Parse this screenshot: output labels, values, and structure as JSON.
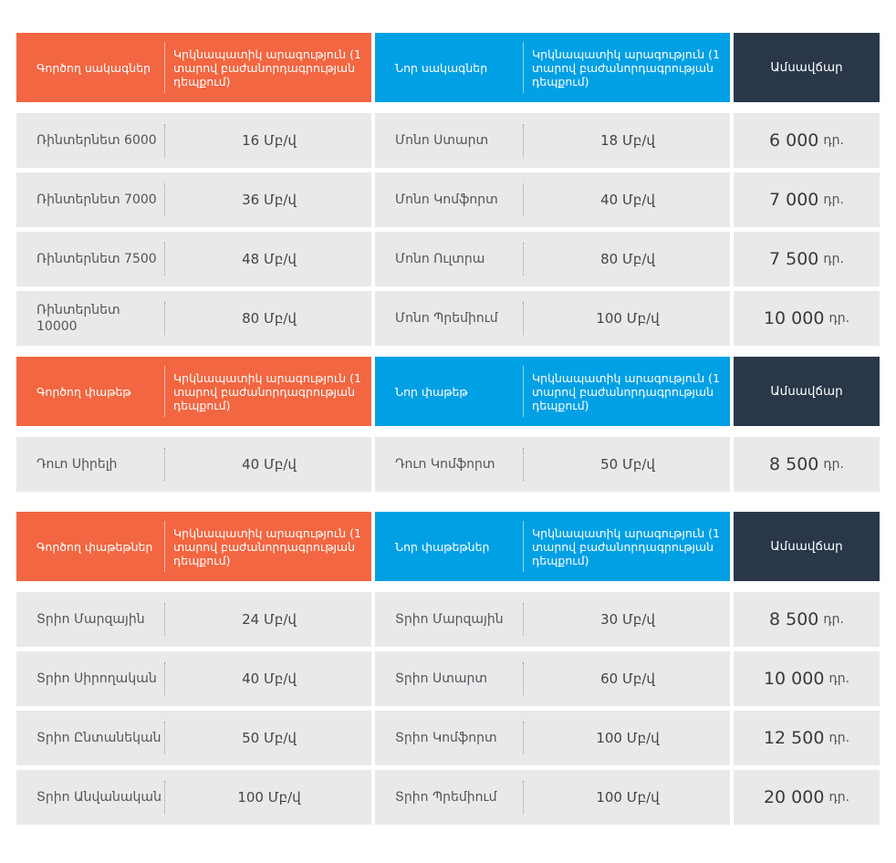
{
  "sections": [
    {
      "header": {
        "existing_label": "Գործող սակագներ",
        "existing_desc": "Կրկնապատիկ արագություն (1 տարով բաժանորդագրության դեպքում)",
        "new_label": "Նոր սակագներ",
        "new_desc": "Կրկնապատիկ արագություն (1 տարով բաժանորդագրության դեպքում)",
        "price_label": "Ամսավճար"
      },
      "rows": [
        {
          "old_name": "Ռինտերնետ 6000",
          "old_speed": "16 Մբ/վ",
          "new_name": "Մոնո Ստարտ",
          "new_speed": "18 Մբ/վ",
          "price": "6 000",
          "unit": "դր."
        },
        {
          "old_name": "Ռինտերնետ 7000",
          "old_speed": "36 Մբ/վ",
          "new_name": "Մոնո Կոմֆորտ",
          "new_speed": "40 Մբ/վ",
          "price": "7 000",
          "unit": "դր."
        },
        {
          "old_name": "Ռինտերնետ 7500",
          "old_speed": "48 Մբ/վ",
          "new_name": "Մոնո Ուլտրա",
          "new_speed": "80 Մբ/վ",
          "price": "7 500",
          "unit": "դր."
        },
        {
          "old_name": "Ռինտերնետ 10000",
          "old_speed": "80 Մբ/վ",
          "new_name": "Մոնո Պրեմիում",
          "new_speed": "100 Մբ/վ",
          "price": "10 000",
          "unit": "դր."
        }
      ]
    },
    {
      "header": {
        "existing_label": "Գործող փաթեթ",
        "existing_desc": "Կրկնապատիկ արագություն (1 տարով բաժանորդագրության դեպքում)",
        "new_label": "Նոր փաթեթ",
        "new_desc": "Կրկնապատիկ արագություն (1 տարով բաժանորդագրության դեպքում)",
        "price_label": "Ամսավճար"
      },
      "rows": [
        {
          "old_name": "Դուո Սիրելի",
          "old_speed": "40 Մբ/վ",
          "new_name": "Դուո Կոմֆորտ",
          "new_speed": "50 Մբ/վ",
          "price": "8 500",
          "unit": "դր."
        }
      ]
    },
    {
      "header": {
        "existing_label": "Գործող փաթեթներ",
        "existing_desc": "Կրկնապատիկ արագություն (1 տարով բաժանորդագրության դեպքում)",
        "new_label": "Նոր փաթեթներ",
        "new_desc": "Կրկնապատիկ արագություն (1 տարով բաժանորդագրության դեպքում)",
        "price_label": "Ամսավճար"
      },
      "rows": [
        {
          "old_name": "Տրիո Մարզային",
          "old_speed": "24 Մբ/վ",
          "new_name": "Տրիո Մարզային",
          "new_speed": "30 Մբ/վ",
          "price": "8 500",
          "unit": "դր."
        },
        {
          "old_name": "Տրիո Սիրողական",
          "old_speed": "40 Մբ/վ",
          "new_name": "Տրիո Ստարտ",
          "new_speed": "60 Մբ/վ",
          "price": "10 000",
          "unit": "դր."
        },
        {
          "old_name": "Տրիո Ընտանեկան",
          "old_speed": "50 Մբ/վ",
          "new_name": "Տրիո Կոմֆորտ",
          "new_speed": "100 Մբ/վ",
          "price": "12 500",
          "unit": "դր."
        },
        {
          "old_name": "Տրիո Անվանական",
          "old_speed": "100 Մբ/վ",
          "new_name": "Տրիո Պրեմիում",
          "new_speed": "100 Մբ/վ",
          "price": "20 000",
          "unit": "դր."
        }
      ]
    }
  ],
  "colors": {
    "existing_header": "#f26641",
    "new_header": "#00a0e4",
    "price_header": "#293749",
    "row_background": "#e8e9eb"
  }
}
